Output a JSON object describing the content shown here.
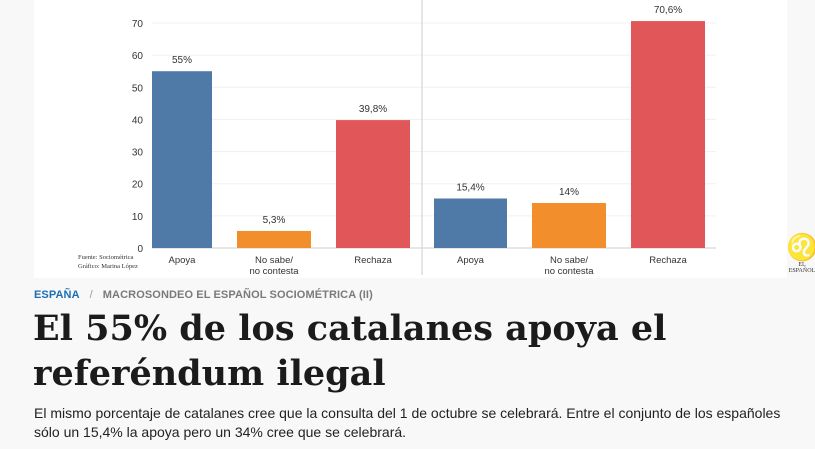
{
  "chart_data": [
    {
      "type": "bar",
      "categories": [
        "Apoya",
        "No sabe/\nno contesta",
        "Rechaza"
      ],
      "values": [
        55,
        5.3,
        39.8
      ],
      "data_labels": [
        "55%",
        "5,3%",
        "39,8%"
      ],
      "ylim": [
        0,
        70
      ],
      "yticks": [
        0,
        10,
        20,
        30,
        40,
        50,
        60,
        70
      ],
      "colors": [
        "#4f79a6",
        "#f28e2c",
        "#e15759"
      ],
      "grid": true
    },
    {
      "type": "bar",
      "categories": [
        "Apoya",
        "No sabe/\nno contesta",
        "Rechaza"
      ],
      "values": [
        15.4,
        14,
        70.6
      ],
      "data_labels": [
        "15,4%",
        "14%",
        "70,6%"
      ],
      "ylim": [
        0,
        70
      ],
      "colors": [
        "#4f79a6",
        "#f28e2c",
        "#e15759"
      ],
      "grid": true
    }
  ],
  "credits": {
    "source": "Fuente: Sociométrica",
    "graphic": "Gráfico: Marina López"
  },
  "logo_text": "EL ESPAÑOL",
  "breadcrumb": {
    "section": "ESPAÑA",
    "separator": "/",
    "subsection": "MACROSONDEO EL ESPAÑOL SOCIOMÉTRICA (II)"
  },
  "headline": "El 55% de los catalanes apoya el referéndum ilegal",
  "summary": "El mismo porcentaje de catalanes cree que la consulta del 1 de octubre se celebrará. Entre el conjunto de los españoles sólo un 15,4% la apoya pero un 34% cree que se celebrará.",
  "colors": {
    "section_link": "#1a6fb5",
    "headline": "#1b1b1b"
  }
}
